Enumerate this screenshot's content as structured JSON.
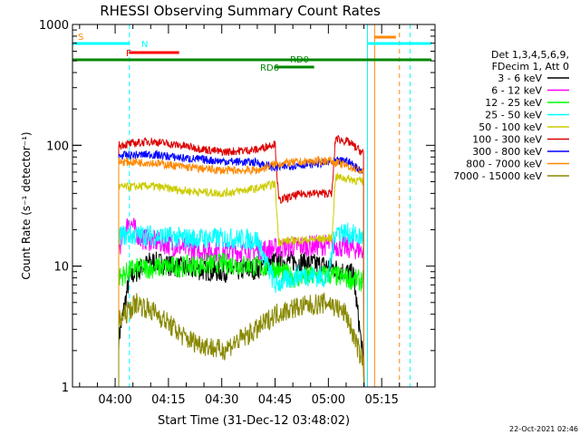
{
  "chart_data": {
    "type": "line",
    "title": "RHESSI Observing Summary Count Rates",
    "xlabel": "Start Time (31-Dec-12 03:48:02)",
    "ylabel": "Count Rate (s⁻¹ detector⁻¹)",
    "yscale": "log",
    "ylim": [
      1,
      1000
    ],
    "xlim_minutes": [
      228,
      330
    ],
    "x_ticks": [
      "04:00",
      "04:15",
      "04:30",
      "04:45",
      "05:00",
      "05:15"
    ],
    "x_tick_minutes": [
      240,
      255,
      270,
      285,
      300,
      315
    ],
    "y_ticks": [
      "1",
      "10",
      "100",
      "1000"
    ],
    "y_tick_values": [
      1,
      10,
      100,
      1000
    ],
    "legend_header": [
      "Det 1,3,4,5,6,9,",
      "FDecim 1, Att 0"
    ],
    "legend_position": "right",
    "footer": "22-Oct-2021 02:46",
    "segment": {
      "start": 240.0,
      "end": 312.2,
      "gap": 285.4
    },
    "series": [
      {
        "name": "3 - 6 keV",
        "color": "#000000",
        "values": [
          {
            "x": 241,
            "y": 2.5
          },
          {
            "x": 244,
            "y": 8
          },
          {
            "x": 250,
            "y": 11
          },
          {
            "x": 260,
            "y": 9.5
          },
          {
            "x": 270,
            "y": 9
          },
          {
            "x": 280,
            "y": 9.5
          },
          {
            "x": 285,
            "y": 11
          },
          {
            "x": 290,
            "y": 11
          },
          {
            "x": 300,
            "y": 10
          },
          {
            "x": 307,
            "y": 8.5
          },
          {
            "x": 310,
            "y": 1.5
          }
        ]
      },
      {
        "name": "6 - 12 keV",
        "color": "#ff00ff",
        "values": [
          {
            "x": 241,
            "y": 14
          },
          {
            "x": 244,
            "y": 24
          },
          {
            "x": 247,
            "y": 17
          },
          {
            "x": 260,
            "y": 14
          },
          {
            "x": 270,
            "y": 13
          },
          {
            "x": 280,
            "y": 13.5
          },
          {
            "x": 285,
            "y": 14
          },
          {
            "x": 290,
            "y": 14.5
          },
          {
            "x": 300,
            "y": 15
          },
          {
            "x": 310,
            "y": 13.5
          }
        ]
      },
      {
        "name": "12 - 25 keV",
        "color": "#00ff00",
        "values": [
          {
            "x": 241,
            "y": 8
          },
          {
            "x": 245,
            "y": 9.5
          },
          {
            "x": 260,
            "y": 10
          },
          {
            "x": 270,
            "y": 10.5
          },
          {
            "x": 280,
            "y": 10
          },
          {
            "x": 285,
            "y": 9.5
          },
          {
            "x": 290,
            "y": 8
          },
          {
            "x": 300,
            "y": 8.5
          },
          {
            "x": 310,
            "y": 7.5
          }
        ]
      },
      {
        "name": "25 - 50 keV",
        "color": "#00ffff",
        "values": [
          {
            "x": 241,
            "y": 18
          },
          {
            "x": 250,
            "y": 18
          },
          {
            "x": 260,
            "y": 17
          },
          {
            "x": 270,
            "y": 17
          },
          {
            "x": 280,
            "y": 16.5
          },
          {
            "x": 285,
            "y": 7
          },
          {
            "x": 292,
            "y": 8.5
          },
          {
            "x": 300,
            "y": 8
          },
          {
            "x": 302,
            "y": 20
          },
          {
            "x": 310,
            "y": 17
          }
        ]
      },
      {
        "name": "50 - 100 keV",
        "color": "#cccc00",
        "values": [
          {
            "x": 241,
            "y": 45
          },
          {
            "x": 250,
            "y": 46
          },
          {
            "x": 260,
            "y": 42
          },
          {
            "x": 270,
            "y": 40
          },
          {
            "x": 280,
            "y": 44
          },
          {
            "x": 285,
            "y": 48
          },
          {
            "x": 286,
            "y": 16
          },
          {
            "x": 301,
            "y": 17
          },
          {
            "x": 302,
            "y": 55
          },
          {
            "x": 310,
            "y": 50
          }
        ]
      },
      {
        "name": "100 - 300 keV",
        "color": "#dd0000",
        "values": [
          {
            "x": 241,
            "y": 100
          },
          {
            "x": 250,
            "y": 108
          },
          {
            "x": 260,
            "y": 98
          },
          {
            "x": 270,
            "y": 88
          },
          {
            "x": 280,
            "y": 92
          },
          {
            "x": 285,
            "y": 104
          },
          {
            "x": 286,
            "y": 35
          },
          {
            "x": 293,
            "y": 40
          },
          {
            "x": 301,
            "y": 40
          },
          {
            "x": 302,
            "y": 115
          },
          {
            "x": 306,
            "y": 105
          },
          {
            "x": 310,
            "y": 85
          }
        ]
      },
      {
        "name": "300 - 800 keV",
        "color": "#0000ff",
        "values": [
          {
            "x": 241,
            "y": 82
          },
          {
            "x": 250,
            "y": 84
          },
          {
            "x": 260,
            "y": 78
          },
          {
            "x": 270,
            "y": 74
          },
          {
            "x": 280,
            "y": 72
          },
          {
            "x": 285,
            "y": 65
          },
          {
            "x": 290,
            "y": 68
          },
          {
            "x": 300,
            "y": 72
          },
          {
            "x": 305,
            "y": 75
          },
          {
            "x": 310,
            "y": 60
          }
        ]
      },
      {
        "name": "800 - 7000 keV",
        "color": "#ff8800",
        "values": [
          {
            "x": 241,
            "y": 73
          },
          {
            "x": 250,
            "y": 72
          },
          {
            "x": 260,
            "y": 66
          },
          {
            "x": 270,
            "y": 62
          },
          {
            "x": 280,
            "y": 62
          },
          {
            "x": 285,
            "y": 70
          },
          {
            "x": 290,
            "y": 72
          },
          {
            "x": 300,
            "y": 75
          },
          {
            "x": 305,
            "y": 68
          },
          {
            "x": 310,
            "y": 60
          }
        ]
      },
      {
        "name": "7000 - 15000 keV",
        "color": "#888800",
        "values": [
          {
            "x": 241,
            "y": 3.5
          },
          {
            "x": 246,
            "y": 5
          },
          {
            "x": 252,
            "y": 4
          },
          {
            "x": 260,
            "y": 2.5
          },
          {
            "x": 270,
            "y": 2
          },
          {
            "x": 280,
            "y": 3
          },
          {
            "x": 285,
            "y": 4
          },
          {
            "x": 290,
            "y": 4.5
          },
          {
            "x": 300,
            "y": 5
          },
          {
            "x": 305,
            "y": 4
          },
          {
            "x": 310,
            "y": 1.5
          }
        ]
      }
    ],
    "flag_bars": [
      {
        "label": "S",
        "color": "#ff8800",
        "x0": 228,
        "x1": 228,
        "level": 1
      },
      {
        "label": "N",
        "color": "#00ffff",
        "x0": 228,
        "x1": 244,
        "level": 2
      },
      {
        "label": "F",
        "color": "#ff0000",
        "x0": 244,
        "x1": 258,
        "level": 3
      },
      {
        "label": "RD0",
        "color": "#008800",
        "x0": 228,
        "x1": 329,
        "level": 4
      },
      {
        "label": "RD6",
        "color": "#008800",
        "x0": 285,
        "x1": 296,
        "level": 5
      },
      {
        "label": "",
        "color": "#00ffff",
        "x0": 311,
        "x1": 329,
        "level": 2
      },
      {
        "label": "",
        "color": "#ff8800",
        "x0": 313,
        "x1": 319,
        "level": 1
      }
    ],
    "markers": [
      {
        "color": "#00ffff",
        "x": 228,
        "style": "solid"
      },
      {
        "color": "#00ffff",
        "x": 244,
        "style": "dashed"
      },
      {
        "color": "#00ffff",
        "x": 311,
        "style": "solid"
      },
      {
        "color": "#ff8800",
        "x": 313,
        "style": "solid"
      },
      {
        "color": "#ff8800",
        "x": 320,
        "style": "dashed"
      },
      {
        "color": "#00ffff",
        "x": 323,
        "style": "dashed"
      }
    ]
  }
}
